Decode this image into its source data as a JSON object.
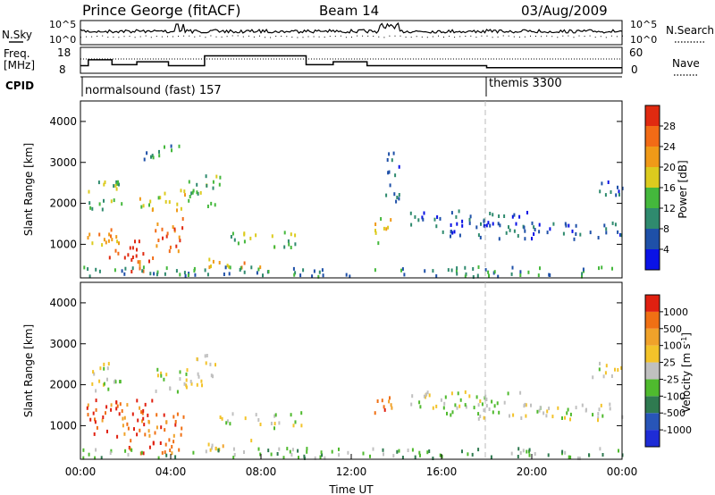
{
  "header": {
    "title": "Prince George (fitACF)",
    "beam": "Beam 14",
    "date": "03/Aug/2009"
  },
  "noise_panel": {
    "left_label": "N.Sky",
    "right_label": "N.Search",
    "ticks": [
      "10^5",
      "10^0"
    ]
  },
  "freq_panel": {
    "left_label_1": "Freq.",
    "left_label_2": "[MHz]",
    "left_ticks": [
      "18",
      "8"
    ],
    "right_label": "Nave",
    "right_ticks": [
      "60",
      "0"
    ],
    "freq_steps": [
      {
        "t0": 0.0,
        "t1": 0.35,
        "v": 10.5
      },
      {
        "t0": 0.35,
        "t1": 1.4,
        "v": 13.5
      },
      {
        "t0": 1.4,
        "t1": 2.5,
        "v": 11
      },
      {
        "t0": 2.5,
        "t1": 3.9,
        "v": 12.5
      },
      {
        "t0": 3.9,
        "t1": 5.5,
        "v": 10.5
      },
      {
        "t0": 5.5,
        "t1": 10.0,
        "v": 15.5
      },
      {
        "t0": 10.0,
        "t1": 11.2,
        "v": 11
      },
      {
        "t0": 11.2,
        "t1": 12.7,
        "v": 12.5
      },
      {
        "t0": 12.7,
        "t1": 18.0,
        "v": 10.5
      },
      {
        "t0": 18.0,
        "t1": 24.0,
        "v": 9.5
      }
    ]
  },
  "cpid": {
    "label": "CPID",
    "programs": [
      {
        "name": "normalsound (fast) 157",
        "start": 0
      },
      {
        "name": "themis 3300",
        "start": 18
      }
    ]
  },
  "chart_data": [
    {
      "type": "heatmap",
      "ylabel": "Slant Range [km]",
      "ylim": [
        180,
        4500
      ],
      "xlim": [
        0,
        24
      ],
      "yticks": [
        1000,
        2000,
        3000,
        4000
      ],
      "colorbar": {
        "label": "Power [dB]",
        "ticks": [
          "4",
          "8",
          "12",
          "16",
          "20",
          "24",
          "28"
        ],
        "colors": [
          "#0a12e6",
          "#1e50a8",
          "#2f8a6e",
          "#44b83c",
          "#dccb1e",
          "#f09a18",
          "#f26b16",
          "#e02a10"
        ]
      },
      "regions": [
        {
          "t0": 0.3,
          "t1": 1.8,
          "r0": 1800,
          "r1": 2600,
          "lvl": 3
        },
        {
          "t0": 0.2,
          "t1": 2.0,
          "r0": 900,
          "r1": 1400,
          "lvl": 5
        },
        {
          "t0": 1.2,
          "t1": 2.8,
          "r0": 600,
          "r1": 1100,
          "lvl": 7
        },
        {
          "t0": 1.8,
          "t1": 3.2,
          "r0": 300,
          "r1": 700,
          "lvl": 6
        },
        {
          "t0": 2.5,
          "t1": 4.8,
          "r0": 1800,
          "r1": 2300,
          "lvl": 4
        },
        {
          "t0": 3.2,
          "t1": 4.6,
          "r0": 800,
          "r1": 1600,
          "lvl": 6
        },
        {
          "t0": 2.8,
          "t1": 4.4,
          "r0": 3000,
          "r1": 3400,
          "lvl": 2
        },
        {
          "t0": 4.7,
          "t1": 6.2,
          "r0": 1900,
          "r1": 2700,
          "lvl": 3
        },
        {
          "t0": 5.6,
          "t1": 8.0,
          "r0": 380,
          "r1": 620,
          "lvl": 5
        },
        {
          "t0": 6.0,
          "t1": 7.8,
          "r0": 1000,
          "r1": 1300,
          "lvl": 3
        },
        {
          "t0": 8.4,
          "t1": 10.0,
          "r0": 900,
          "r1": 1300,
          "lvl": 3
        },
        {
          "t0": 13.0,
          "t1": 13.8,
          "r0": 1000,
          "r1": 1700,
          "lvl": 4
        },
        {
          "t0": 14.4,
          "t1": 20.0,
          "r0": 1400,
          "r1": 1800,
          "lvl": 1
        },
        {
          "t0": 16.0,
          "t1": 24.0,
          "r0": 1100,
          "r1": 1500,
          "lvl": 1
        },
        {
          "t0": 22.5,
          "t1": 24.0,
          "r0": 2100,
          "r1": 2500,
          "lvl": 1
        },
        {
          "t0": 13.5,
          "t1": 14.2,
          "r0": 2000,
          "r1": 3300,
          "lvl": 1
        },
        {
          "t0": 0.0,
          "t1": 24.0,
          "r0": 180,
          "r1": 420,
          "lvl": 2
        }
      ]
    },
    {
      "type": "heatmap",
      "ylabel": "Slant Range [km]",
      "xlabel": "Time UT",
      "ylim": [
        180,
        4500
      ],
      "xlim": [
        0,
        24
      ],
      "yticks": [
        1000,
        2000,
        3000,
        4000
      ],
      "xticks": [
        "00:00",
        "04:00",
        "08:00",
        "12:00",
        "16:00",
        "20:00",
        "00:00"
      ],
      "colorbar": {
        "label_main": "Velocity",
        "label_unit": "[m s",
        "label_exp": "-1",
        "label_end": "]",
        "ticks": [
          "1000",
          "500",
          "100",
          "25",
          "-25",
          "-100",
          "-500",
          "-1000"
        ],
        "colors": [
          "#1e2cd6",
          "#2855b8",
          "#2f7a50",
          "#4fba2e",
          "#c0c0c0",
          "#f3c32a",
          "#f0a22a",
          "#f07014",
          "#e02010"
        ]
      },
      "regions": [
        {
          "t0": 0.2,
          "t1": 1.8,
          "r0": 1800,
          "r1": 2500,
          "lvl": 4
        },
        {
          "t0": 0.2,
          "t1": 3.2,
          "r0": 700,
          "r1": 1600,
          "lvl": 7
        },
        {
          "t0": 2.0,
          "t1": 4.6,
          "r0": 300,
          "r1": 1300,
          "lvl": 7
        },
        {
          "t0": 3.0,
          "t1": 4.8,
          "r0": 1800,
          "r1": 2400,
          "lvl": 4
        },
        {
          "t0": 4.8,
          "t1": 6.0,
          "r0": 1900,
          "r1": 2700,
          "lvl": 4
        },
        {
          "t0": 5.6,
          "t1": 8.0,
          "r0": 380,
          "r1": 620,
          "lvl": 5
        },
        {
          "t0": 6.0,
          "t1": 8.0,
          "r0": 1000,
          "r1": 1300,
          "lvl": 4
        },
        {
          "t0": 8.4,
          "t1": 10.0,
          "r0": 900,
          "r1": 1300,
          "lvl": 4
        },
        {
          "t0": 13.0,
          "t1": 13.8,
          "r0": 1000,
          "r1": 1700,
          "lvl": 7
        },
        {
          "t0": 14.4,
          "t1": 20.0,
          "r0": 1400,
          "r1": 1800,
          "lvl": 4
        },
        {
          "t0": 16.0,
          "t1": 24.0,
          "r0": 1100,
          "r1": 1500,
          "lvl": 4
        },
        {
          "t0": 22.5,
          "t1": 24.0,
          "r0": 2100,
          "r1": 2500,
          "lvl": 4
        },
        {
          "t0": 0.0,
          "t1": 24.0,
          "r0": 180,
          "r1": 420,
          "lvl": 3
        }
      ]
    }
  ]
}
